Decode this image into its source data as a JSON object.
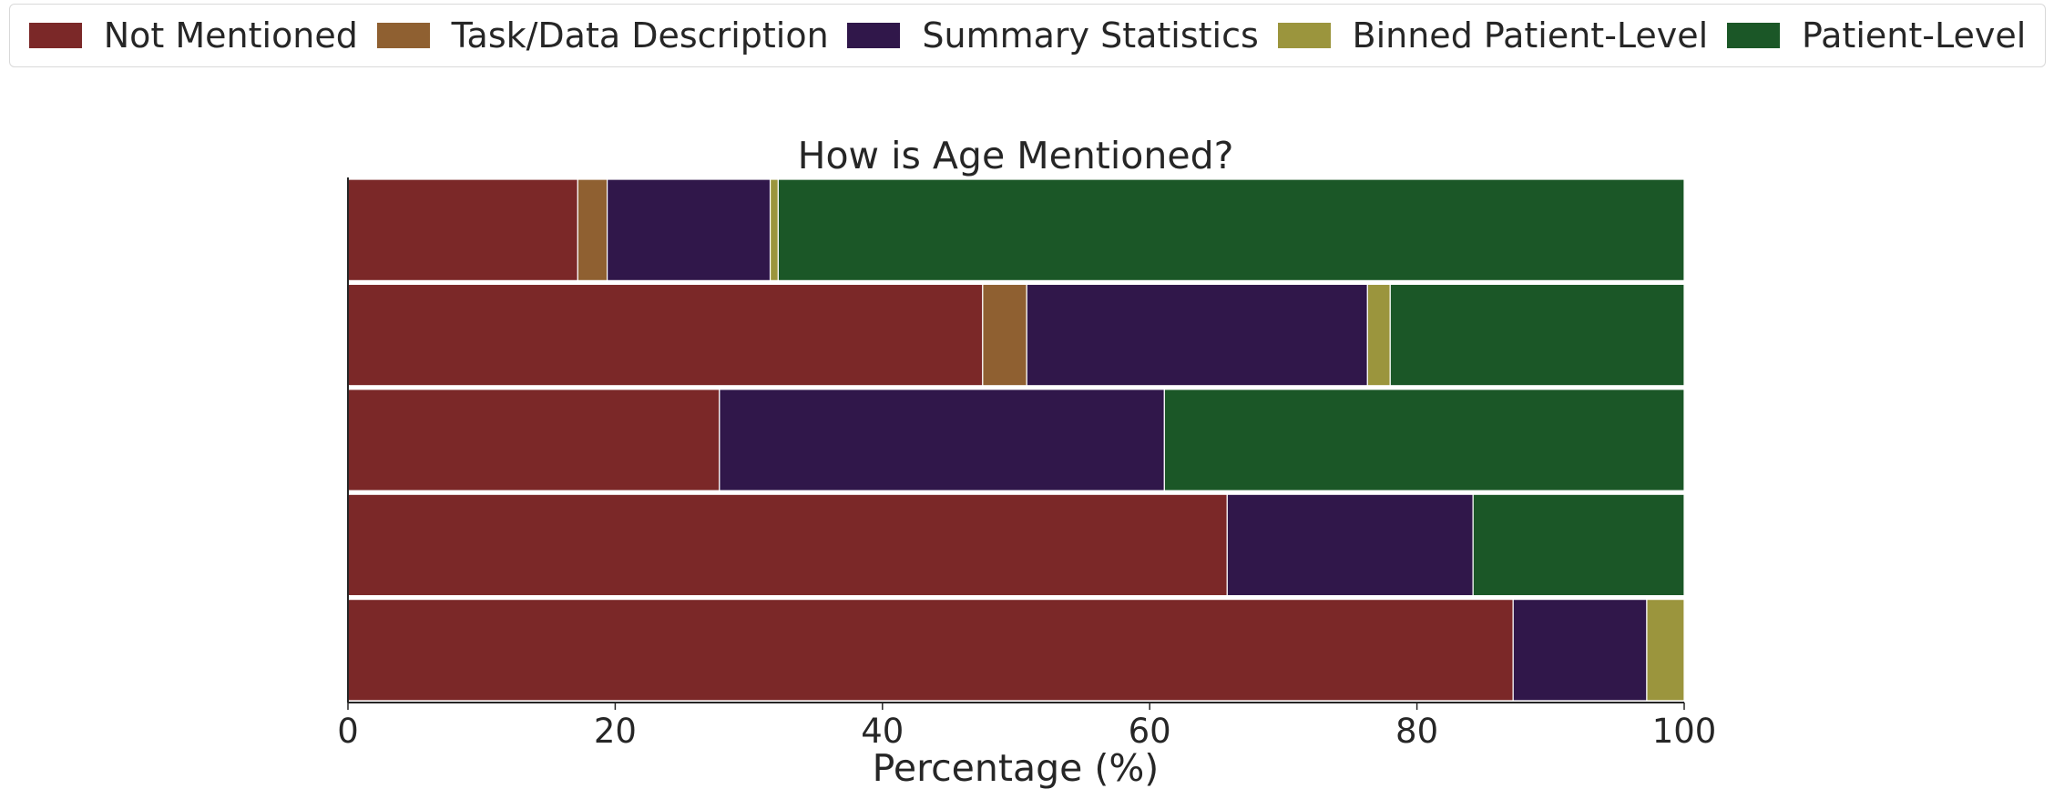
{
  "chart_data": {
    "type": "bar",
    "orientation": "horizontal",
    "stacked": true,
    "title": "How is Age Mentioned?",
    "xlabel": "Percentage (%)",
    "ylabel": "",
    "xlim": [
      0,
      100
    ],
    "xticks": [
      0,
      20,
      40,
      60,
      80,
      100
    ],
    "grid": false,
    "legend_position": "top",
    "series": [
      {
        "name": "Not Mentioned",
        "color": "#7b2828",
        "values": [
          17.2,
          47.5,
          27.8,
          65.8,
          87.2
        ]
      },
      {
        "name": "Task/Data Description",
        "color": "#8f6031",
        "values": [
          2.2,
          3.3,
          0,
          0,
          0
        ]
      },
      {
        "name": "Summary Statistics",
        "color": "#30174a",
        "values": [
          12.2,
          25.5,
          33.3,
          18.4,
          10.0
        ]
      },
      {
        "name": "Binned Patient-Level",
        "color": "#9b953d",
        "values": [
          0.6,
          1.7,
          0,
          0,
          2.8
        ]
      },
      {
        "name": "Patient-Level",
        "color": "#1b5727",
        "values": [
          67.8,
          22.0,
          38.9,
          15.8,
          0
        ]
      }
    ]
  }
}
